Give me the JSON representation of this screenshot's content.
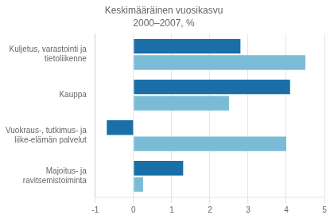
{
  "chart_data": {
    "type": "bar",
    "orientation": "horizontal",
    "title": "Keskimääräinen vuosikasvu",
    "subtitle": "2000–2007, %",
    "categories": [
      "Kuljetus, varastointi ja\ntietoliikenne",
      "Kauppa",
      "Vuokraus-, tutkimus- ja\nliike-elämän palvelut",
      "Majoitus- ja\nravitsemistoiminta"
    ],
    "series": [
      {
        "color": "#1a6fa8",
        "values": [
          2.8,
          4.1,
          -0.7,
          1.3
        ]
      },
      {
        "color": "#7abcd6",
        "values": [
          4.5,
          2.5,
          4.0,
          0.25
        ]
      }
    ],
    "xlim": [
      -1,
      5
    ],
    "xticks": [
      -1,
      0,
      1,
      2,
      3,
      4,
      5
    ],
    "grid": true
  }
}
